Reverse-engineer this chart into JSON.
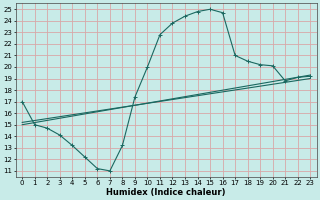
{
  "xlabel": "Humidex (Indice chaleur)",
  "ylabel": "",
  "xlim": [
    -0.5,
    23.5
  ],
  "ylim": [
    10.5,
    25.5
  ],
  "xticks": [
    0,
    1,
    2,
    3,
    4,
    5,
    6,
    7,
    8,
    9,
    10,
    11,
    12,
    13,
    14,
    15,
    16,
    17,
    18,
    19,
    20,
    21,
    22,
    23
  ],
  "yticks": [
    11,
    12,
    13,
    14,
    15,
    16,
    17,
    18,
    19,
    20,
    21,
    22,
    23,
    24,
    25
  ],
  "bg_color": "#c8ebe8",
  "grid_color": "#d8a8a8",
  "line_color": "#1a6860",
  "curve1_x": [
    0,
    1,
    2,
    3,
    4,
    5,
    6,
    7,
    8,
    9,
    10,
    11,
    12,
    13,
    14,
    15,
    16,
    17,
    18,
    19,
    20,
    21,
    22,
    23
  ],
  "curve1_y": [
    17.0,
    15.0,
    14.7,
    14.1,
    13.2,
    12.2,
    11.2,
    11.0,
    13.2,
    17.4,
    20.0,
    22.8,
    23.8,
    24.4,
    24.8,
    25.0,
    24.7,
    21.0,
    20.5,
    20.2,
    20.1,
    18.8,
    19.1,
    19.2
  ],
  "curve2_x": [
    0,
    23
  ],
  "curve2_y": [
    15.0,
    19.3
  ],
  "curve3_x": [
    0,
    23
  ],
  "curve3_y": [
    15.2,
    19.0
  ]
}
